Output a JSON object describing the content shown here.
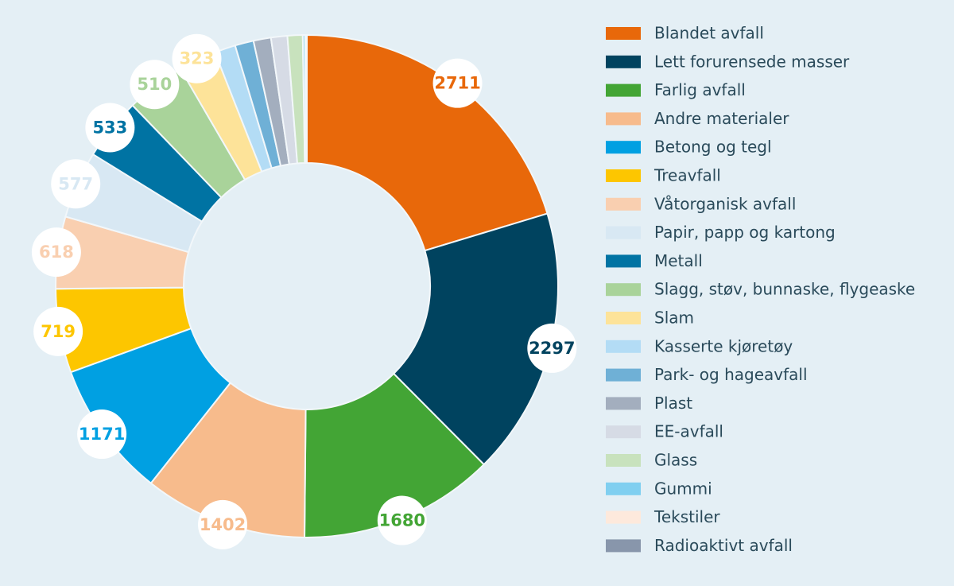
{
  "chart_data": {
    "type": "pie",
    "categories": [
      "Blandet avfall",
      "Lett forurensede masser",
      "Farlig avfall",
      "Andre materialer",
      "Betong og tegl",
      "Treavfall",
      "Våtorganisk avfall",
      "Papir, papp og kartong",
      "Metall",
      "Slagg, støv, bunnaske, flygeaske",
      "Slam",
      "Kasserte kjøretøy",
      "Park- og hageavfall",
      "Plast",
      "EE-avfall",
      "Glass",
      "Gummi",
      "Tekstiler",
      "Radioaktivt avfall"
    ],
    "values": [
      2711,
      2297,
      1680,
      1402,
      1171,
      719,
      618,
      577,
      533,
      510,
      323,
      180,
      160,
      150,
      140,
      130,
      20,
      10,
      5
    ],
    "colors": [
      "#e8680a",
      "#00435f",
      "#43a535",
      "#f7bb8c",
      "#00a0e2",
      "#fdc600",
      "#f9cfb0",
      "#d8e8f3",
      "#0073a3",
      "#a9d39a",
      "#fde399",
      "#b3dcf5",
      "#6fb0d6",
      "#a3aebe",
      "#d6dbe5",
      "#c8e2bd",
      "#80cff0",
      "#fde9dc",
      "#8896ab"
    ]
  }
}
